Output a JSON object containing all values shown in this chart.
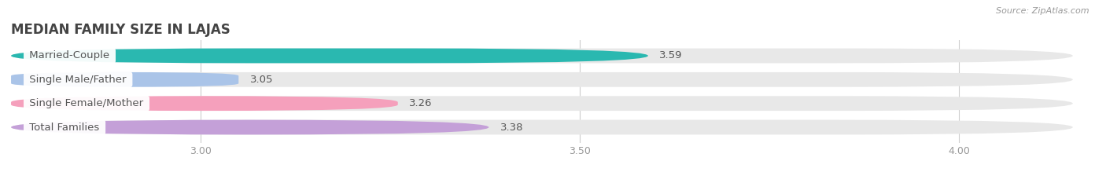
{
  "title": "MEDIAN FAMILY SIZE IN LAJAS",
  "source": "Source: ZipAtlas.com",
  "categories": [
    "Married-Couple",
    "Single Male/Father",
    "Single Female/Mother",
    "Total Families"
  ],
  "values": [
    3.59,
    3.05,
    3.26,
    3.38
  ],
  "bar_colors": [
    "#2ab8b0",
    "#aac4e8",
    "#f5a0bc",
    "#c4a0d8"
  ],
  "bar_bg_color": "#e8e8e8",
  "xlim": [
    2.75,
    4.15
  ],
  "xmin": 2.75,
  "xticks": [
    3.0,
    3.5,
    4.0
  ],
  "bar_height": 0.62,
  "label_fontsize": 9.5,
  "title_fontsize": 12,
  "value_fontsize": 9.5,
  "tick_fontsize": 9,
  "background_color": "#ffffff",
  "label_bg_color": "#ffffff",
  "label_text_color": "#555555",
  "grid_color": "#cccccc"
}
